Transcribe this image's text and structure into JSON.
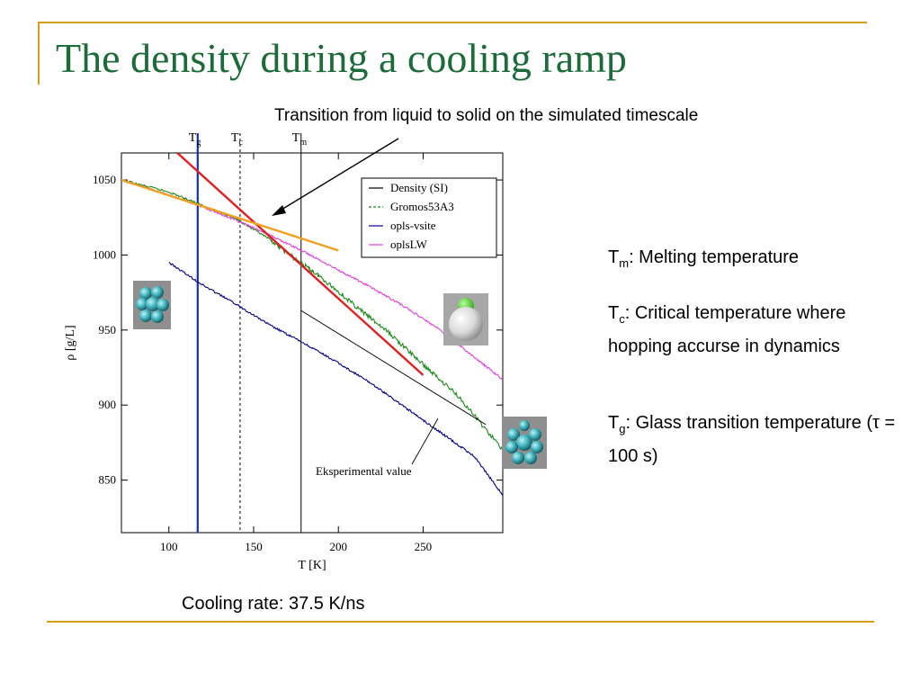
{
  "slide": {
    "title": "The density during a cooling ramp",
    "annotation": "Transition from liquid to solid on the simulated timescale",
    "footer": "Cooling rate: 37.5 K/ns"
  },
  "definitions": [
    {
      "sym": "T",
      "sub": "m",
      "text": ": Melting temperature"
    },
    {
      "sym": "T",
      "sub": "c",
      "text": ": Critical temperature where hopping accurse in dynamics"
    },
    {
      "sym": "T",
      "sub": "g",
      "text": ": Glass transition temperature (τ = 100 s)"
    }
  ],
  "colors": {
    "title": "#1d6b3a",
    "rule": "#d4a017",
    "density_si": "#000000",
    "gromos": "#1a8a1a",
    "opls_vsite": "#00008b",
    "oplsLW": "#e040e0",
    "fit_red": "#e02020",
    "fit_orange": "#f0a020",
    "tg_line": "#1030c0"
  },
  "chart_data": {
    "type": "line",
    "xlabel": "T [K]",
    "ylabel": "ρ [g/L]",
    "xlim": [
      72,
      297
    ],
    "ylim": [
      815,
      1068
    ],
    "xticks": [
      100,
      150,
      200,
      250
    ],
    "yticks": [
      850,
      900,
      950,
      1000,
      1050
    ],
    "legend_position": "top-right",
    "series": [
      {
        "name": "Density (SI)",
        "style": "solid",
        "x": [],
        "y": []
      },
      {
        "name": "Gromos53A3",
        "style": "dashed",
        "x": [
          72,
          100,
          120,
          140,
          160,
          175,
          190,
          210,
          230,
          250,
          270,
          297
        ],
        "y": [
          1050,
          1042,
          1033,
          1024,
          1010,
          997,
          985,
          966,
          948,
          927,
          907,
          870
        ]
      },
      {
        "name": "opls-vsite",
        "style": "solid",
        "x": [
          100,
          120,
          140,
          160,
          180,
          200,
          220,
          240,
          260,
          280,
          297
        ],
        "y": [
          995,
          980,
          967,
          953,
          941,
          928,
          914,
          898,
          882,
          866,
          840
        ]
      },
      {
        "name": "oplsLW",
        "style": "solid",
        "x": [
          72,
          100,
          120,
          140,
          160,
          180,
          200,
          220,
          240,
          260,
          280,
          297
        ],
        "y": [
          1050,
          1040,
          1032,
          1023,
          1013,
          1002,
          990,
          978,
          965,
          950,
          932,
          917
        ]
      }
    ],
    "fits": [
      {
        "color": "red",
        "x": [
          105,
          250
        ],
        "y": [
          1068,
          920
        ]
      },
      {
        "color": "orange",
        "x": [
          72,
          200
        ],
        "y": [
          1050,
          1003
        ]
      }
    ],
    "experimental_value": {
      "label": "Eksperimental value",
      "x": [
        178,
        287
      ],
      "y": [
        963,
        887
      ]
    },
    "vlines": [
      {
        "label": "T",
        "sub": "g",
        "x": 117,
        "style": "solid",
        "color": "blue"
      },
      {
        "label": "T",
        "sub": "c",
        "x": 142,
        "style": "dashed",
        "color": "black"
      },
      {
        "label": "T",
        "sub": "m",
        "x": 178,
        "style": "solid",
        "color": "black"
      }
    ]
  },
  "icons": [
    "cluster-molecule-icon",
    "diatomic-molecule-icon",
    "hexagonal-molecule-icon"
  ]
}
